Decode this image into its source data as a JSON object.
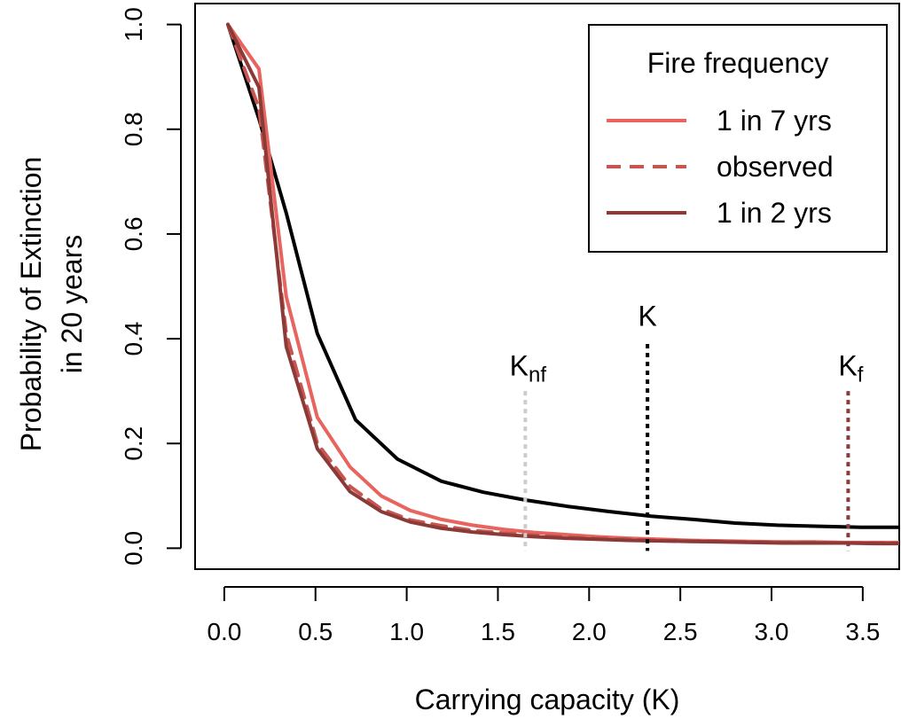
{
  "chart_data": {
    "type": "line",
    "xlabel": "Carrying capacity (K)",
    "ylabel_lines": [
      "Probability of Extinction",
      "in 20 years"
    ],
    "xlim": [
      -0.16,
      3.7
    ],
    "ylim": [
      -0.04,
      1.04
    ],
    "x_ticks": [
      "0.0",
      "0.5",
      "1.0",
      "1.5",
      "2.0",
      "2.5",
      "3.0",
      "3.5"
    ],
    "x_tick_values": [
      0.0,
      0.5,
      1.0,
      1.5,
      2.0,
      2.5,
      3.0,
      3.5
    ],
    "y_ticks": [
      "0.0",
      "0.2",
      "0.4",
      "0.6",
      "0.8",
      "1.0"
    ],
    "y_tick_values": [
      0.0,
      0.2,
      0.4,
      0.6,
      0.8,
      1.0
    ],
    "legend": {
      "title": "Fire frequency",
      "position": "top-right",
      "entries": [
        {
          "label": "1 in 7 yrs",
          "color": "#E8645F",
          "dash": "solid"
        },
        {
          "label": "observed",
          "color": "#C75550",
          "dash": "dashed"
        },
        {
          "label": "1 in 2 yrs",
          "color": "#8B3A37",
          "dash": "solid"
        }
      ]
    },
    "series": [
      {
        "name": "1 in 7 yrs",
        "color": "#E8645F",
        "dash": "solid",
        "x": [
          0.02,
          0.19,
          0.34,
          0.51,
          0.69,
          0.86,
          1.02,
          1.19,
          1.36,
          1.53,
          1.7,
          1.87,
          2.04,
          2.21,
          2.38,
          2.55,
          2.72,
          2.89,
          3.06,
          3.23,
          3.4,
          3.57,
          3.7
        ],
        "y": [
          1.0,
          0.915,
          0.48,
          0.25,
          0.155,
          0.1,
          0.072,
          0.055,
          0.044,
          0.036,
          0.03,
          0.026,
          0.022,
          0.019,
          0.017,
          0.015,
          0.014,
          0.013,
          0.012,
          0.012,
          0.011,
          0.011,
          0.011
        ]
      },
      {
        "name": "observed",
        "color": "#C75550",
        "dash": "dashed",
        "x": [
          0.02,
          0.19,
          0.34,
          0.51,
          0.69,
          0.86,
          1.02,
          1.19,
          1.36,
          1.53,
          1.7,
          1.87,
          2.04,
          2.21,
          2.38,
          2.55,
          2.72,
          2.89,
          3.06,
          3.23,
          3.4,
          3.57,
          3.7
        ],
        "y": [
          1.0,
          0.84,
          0.41,
          0.2,
          0.118,
          0.075,
          0.054,
          0.043,
          0.034,
          0.029,
          0.025,
          0.022,
          0.019,
          0.017,
          0.015,
          0.014,
          0.013,
          0.012,
          0.011,
          0.011,
          0.01,
          0.01,
          0.01
        ]
      },
      {
        "name": "1 in 2 yrs",
        "color": "#8B3A37",
        "dash": "solid",
        "x": [
          0.02,
          0.19,
          0.34,
          0.51,
          0.69,
          0.86,
          1.02,
          1.19,
          1.36,
          1.53,
          1.7,
          1.87,
          2.04,
          2.21,
          2.38,
          2.55,
          2.72,
          2.89,
          3.06,
          3.23,
          3.4,
          3.57,
          3.7
        ],
        "y": [
          1.0,
          0.88,
          0.385,
          0.19,
          0.108,
          0.07,
          0.05,
          0.038,
          0.031,
          0.026,
          0.022,
          0.019,
          0.017,
          0.015,
          0.014,
          0.013,
          0.012,
          0.011,
          0.01,
          0.01,
          0.01,
          0.009,
          0.009
        ]
      },
      {
        "name": "",
        "color": "#000000",
        "dash": "solid",
        "x": [
          0.02,
          0.19,
          0.34,
          0.51,
          0.72,
          0.95,
          1.19,
          1.42,
          1.65,
          1.88,
          2.11,
          2.34,
          2.57,
          2.8,
          3.03,
          3.26,
          3.49,
          3.7
        ],
        "y": [
          1.0,
          0.82,
          0.64,
          0.41,
          0.245,
          0.17,
          0.128,
          0.107,
          0.092,
          0.08,
          0.07,
          0.061,
          0.055,
          0.048,
          0.044,
          0.042,
          0.04,
          0.04
        ]
      }
    ],
    "vlines": [
      {
        "label_main": "K",
        "label_sub": "nf",
        "x": 1.65,
        "y_top": 0.3,
        "label_y": 0.33,
        "color": "#CCCCCC"
      },
      {
        "label_main": "K",
        "label_sub": "",
        "x": 2.32,
        "y_top": 0.39,
        "label_y": 0.425,
        "color": "#000000"
      },
      {
        "label_main": "K",
        "label_sub": "f",
        "x": 3.42,
        "y_top": 0.3,
        "label_y": 0.33,
        "color": "#8B3A37"
      }
    ]
  }
}
